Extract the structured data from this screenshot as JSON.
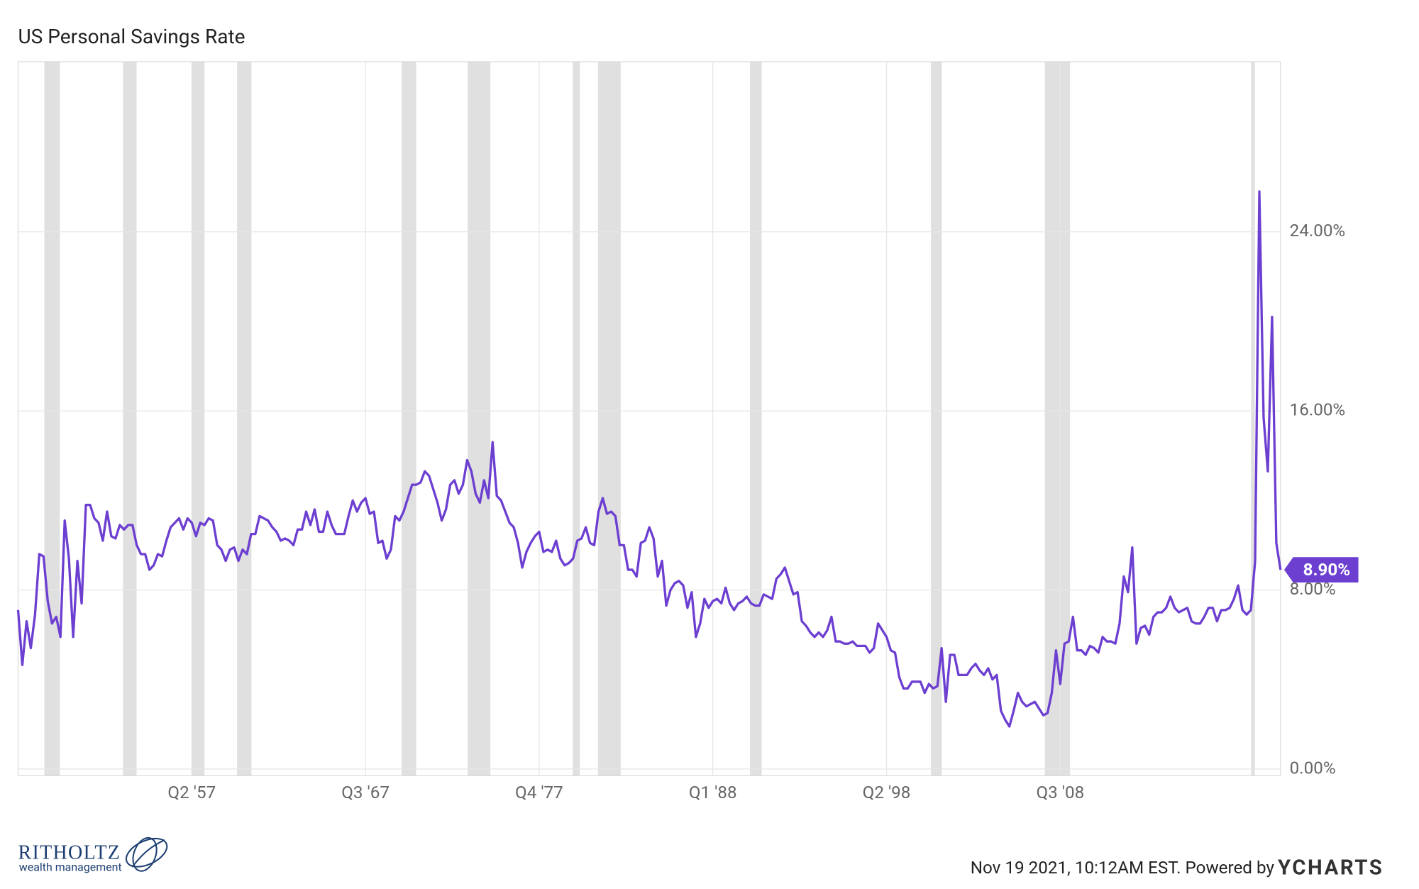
{
  "chart_data": {
    "type": "line",
    "title": "US Personal Savings Rate",
    "color": "#6c3fd1",
    "grid": true,
    "recession_color": "#e0e0e0",
    "end_label": "8.90%",
    "xlim": [
      1947,
      2021.5
    ],
    "ylim": [
      -0.3,
      31.6
    ],
    "xticks": [
      {
        "value": 1957.25,
        "label": "Q2 '57"
      },
      {
        "value": 1967.5,
        "label": "Q3 '67"
      },
      {
        "value": 1977.75,
        "label": "Q4 '77"
      },
      {
        "value": 1988,
        "label": "Q1 '88"
      },
      {
        "value": 1998.25,
        "label": "Q2 '98"
      },
      {
        "value": 2008.5,
        "label": "Q3 '08"
      }
    ],
    "yticks": [
      {
        "value": 0,
        "label": "0.00%"
      },
      {
        "value": 8,
        "label": "8.00%"
      },
      {
        "value": 16,
        "label": "16.00%"
      },
      {
        "value": 24,
        "label": "24.00%"
      }
    ],
    "recessions": [
      [
        1948.55,
        1949.46
      ],
      [
        1953.19,
        1953.99
      ],
      [
        1957.25,
        1958.0
      ],
      [
        1959.92,
        1960.77
      ],
      [
        1969.63,
        1970.49
      ],
      [
        1973.53,
        1974.87
      ],
      [
        1979.73,
        1980.15
      ],
      [
        1981.22,
        1982.56
      ],
      [
        1990.19,
        1990.88
      ],
      [
        2000.87,
        2001.51
      ],
      [
        2007.59,
        2009.08
      ],
      [
        2019.76,
        2019.98
      ]
    ],
    "x": [
      1947,
      1947.25,
      1947.5,
      1947.75,
      1948,
      1948.25,
      1948.5,
      1948.75,
      1949,
      1949.25,
      1949.5,
      1949.75,
      1950,
      1950.25,
      1950.5,
      1950.75,
      1951,
      1951.25,
      1951.5,
      1951.75,
      1952,
      1952.25,
      1952.5,
      1952.75,
      1953,
      1953.25,
      1953.5,
      1953.75,
      1954,
      1954.25,
      1954.5,
      1954.75,
      1955,
      1955.25,
      1955.5,
      1955.75,
      1956,
      1956.25,
      1956.5,
      1956.75,
      1957,
      1957.25,
      1957.5,
      1957.75,
      1958,
      1958.25,
      1958.5,
      1958.75,
      1959,
      1959.25,
      1959.5,
      1959.75,
      1960,
      1960.25,
      1960.5,
      1960.75,
      1961,
      1961.25,
      1961.5,
      1961.75,
      1962,
      1962.25,
      1962.5,
      1962.75,
      1963,
      1963.25,
      1963.5,
      1963.75,
      1964,
      1964.25,
      1964.5,
      1964.75,
      1965,
      1965.25,
      1965.5,
      1965.75,
      1966,
      1966.25,
      1966.5,
      1966.75,
      1967,
      1967.25,
      1967.5,
      1967.75,
      1968,
      1968.25,
      1968.5,
      1968.75,
      1969,
      1969.25,
      1969.5,
      1969.75,
      1970,
      1970.25,
      1970.5,
      1970.75,
      1971,
      1971.25,
      1971.5,
      1971.75,
      1972,
      1972.25,
      1972.5,
      1972.75,
      1973,
      1973.25,
      1973.5,
      1973.75,
      1974,
      1974.25,
      1974.5,
      1974.75,
      1975,
      1975.25,
      1975.5,
      1975.75,
      1976,
      1976.25,
      1976.5,
      1976.75,
      1977,
      1977.25,
      1977.5,
      1977.75,
      1978,
      1978.25,
      1978.5,
      1978.75,
      1979,
      1979.25,
      1979.5,
      1979.75,
      1980,
      1980.25,
      1980.5,
      1980.75,
      1981,
      1981.25,
      1981.5,
      1981.75,
      1982,
      1982.25,
      1982.5,
      1982.75,
      1983,
      1983.25,
      1983.5,
      1983.75,
      1984,
      1984.25,
      1984.5,
      1984.75,
      1985,
      1985.25,
      1985.5,
      1985.75,
      1986,
      1986.25,
      1986.5,
      1986.75,
      1987,
      1987.25,
      1987.5,
      1987.75,
      1988,
      1988.25,
      1988.5,
      1988.75,
      1989,
      1989.25,
      1989.5,
      1989.75,
      1990,
      1990.25,
      1990.5,
      1990.75,
      1991,
      1991.25,
      1991.5,
      1991.75,
      1992,
      1992.25,
      1992.5,
      1992.75,
      1993,
      1993.25,
      1993.5,
      1993.75,
      1994,
      1994.25,
      1994.5,
      1994.75,
      1995,
      1995.25,
      1995.5,
      1995.75,
      1996,
      1996.25,
      1996.5,
      1996.75,
      1997,
      1997.25,
      1997.5,
      1997.75,
      1998,
      1998.25,
      1998.5,
      1998.75,
      1999,
      1999.25,
      1999.5,
      1999.75,
      2000,
      2000.25,
      2000.5,
      2000.75,
      2001,
      2001.25,
      2001.5,
      2001.75,
      2002,
      2002.25,
      2002.5,
      2002.75,
      2003,
      2003.25,
      2003.5,
      2003.75,
      2004,
      2004.25,
      2004.5,
      2004.75,
      2005,
      2005.25,
      2005.5,
      2005.75,
      2006,
      2006.25,
      2006.5,
      2006.75,
      2007,
      2007.25,
      2007.5,
      2007.75,
      2008,
      2008.25,
      2008.5,
      2008.75,
      2009,
      2009.25,
      2009.5,
      2009.75,
      2010,
      2010.25,
      2010.5,
      2010.75,
      2011,
      2011.25,
      2011.5,
      2011.75,
      2012,
      2012.25,
      2012.5,
      2012.75,
      2013,
      2013.25,
      2013.5,
      2013.75,
      2014,
      2014.25,
      2014.5,
      2014.75,
      2015,
      2015.25,
      2015.5,
      2015.75,
      2016,
      2016.25,
      2016.5,
      2016.75,
      2017,
      2017.25,
      2017.5,
      2017.75,
      2018,
      2018.25,
      2018.5,
      2018.75,
      2019,
      2019.25,
      2019.5,
      2019.75,
      2020,
      2020.25,
      2020.5,
      2020.75,
      2021,
      2021.25,
      2021.5
    ],
    "values": [
      7.1,
      4.65,
      6.6,
      5.4,
      6.9,
      9.6,
      9.5,
      7.5,
      6.5,
      6.8,
      5.9,
      11.1,
      9.4,
      5.9,
      9.3,
      7.4,
      11.8,
      11.8,
      11.2,
      11.0,
      10.2,
      11.5,
      10.4,
      10.3,
      10.9,
      10.7,
      10.9,
      10.9,
      10.0,
      9.6,
      9.6,
      8.9,
      9.1,
      9.6,
      9.5,
      10.2,
      10.8,
      11.0,
      11.2,
      10.7,
      11.2,
      11.0,
      10.4,
      11.0,
      10.9,
      11.2,
      11.1,
      10.0,
      9.8,
      9.3,
      9.8,
      9.9,
      9.3,
      9.8,
      9.6,
      10.5,
      10.5,
      11.3,
      11.2,
      11.1,
      10.8,
      10.6,
      10.2,
      10.3,
      10.2,
      10.0,
      10.7,
      10.7,
      11.5,
      10.9,
      11.6,
      10.6,
      10.6,
      11.5,
      10.9,
      10.5,
      10.5,
      10.5,
      11.3,
      12.0,
      11.5,
      11.9,
      12.1,
      11.4,
      11.5,
      10.1,
      10.2,
      9.4,
      9.8,
      11.3,
      11.1,
      11.5,
      12.1,
      12.7,
      12.7,
      12.8,
      13.3,
      13.1,
      12.5,
      11.9,
      11.1,
      11.6,
      12.7,
      12.9,
      12.3,
      12.7,
      13.8,
      13.3,
      12.3,
      11.9,
      12.9,
      12.1,
      14.6,
      12.2,
      12.0,
      11.5,
      11.0,
      10.8,
      10.1,
      9.0,
      9.7,
      10.1,
      10.4,
      10.6,
      9.7,
      9.8,
      9.7,
      10.2,
      9.4,
      9.1,
      9.2,
      9.4,
      10.2,
      10.3,
      10.8,
      10.1,
      10.0,
      11.5,
      12.1,
      11.4,
      11.5,
      11.3,
      10.0,
      10.0,
      8.9,
      8.9,
      8.6,
      10.1,
      10.2,
      10.8,
      10.3,
      8.6,
      9.3,
      7.3,
      8.0,
      8.3,
      8.4,
      8.2,
      7.2,
      7.9,
      5.9,
      6.5,
      7.6,
      7.2,
      7.5,
      7.6,
      7.4,
      8.1,
      7.4,
      7.1,
      7.4,
      7.5,
      7.7,
      7.4,
      7.3,
      7.3,
      7.8,
      7.7,
      7.6,
      8.5,
      8.7,
      9.0,
      8.4,
      7.8,
      7.9,
      6.6,
      6.4,
      6.1,
      5.9,
      6.1,
      5.9,
      6.2,
      6.8,
      5.7,
      5.7,
      5.6,
      5.6,
      5.7,
      5.5,
      5.5,
      5.5,
      5.2,
      5.4,
      6.5,
      6.2,
      5.9,
      5.3,
      5.2,
      4.1,
      3.6,
      3.6,
      3.9,
      3.9,
      3.9,
      3.4,
      3.8,
      3.6,
      3.7,
      5.4,
      3.0,
      5.1,
      5.1,
      4.2,
      4.2,
      4.2,
      4.5,
      4.7,
      4.4,
      4.2,
      4.5,
      4.0,
      4.2,
      2.6,
      2.2,
      1.9,
      2.6,
      3.4,
      3.0,
      2.8,
      2.9,
      3.0,
      2.7,
      2.4,
      2.5,
      3.4,
      5.3,
      3.8,
      5.6,
      5.7,
      6.8,
      5.3,
      5.3,
      5.1,
      5.5,
      5.4,
      5.2,
      5.9,
      5.7,
      5.7,
      5.6,
      6.5,
      8.6,
      7.9,
      9.9,
      5.6,
      6.3,
      6.4,
      6.0,
      6.8,
      7.0,
      7.0,
      7.2,
      7.7,
      7.2,
      7.0,
      7.1,
      7.2,
      6.6,
      6.5,
      6.5,
      6.8,
      7.2,
      7.2,
      6.6,
      7.1,
      7.1,
      7.2,
      7.6,
      8.2,
      7.1,
      6.9,
      7.1,
      9.3,
      25.8,
      15.7,
      13.3,
      20.2,
      10.1,
      8.9
    ]
  },
  "footer": {
    "logo_name": "RITHOLTZ",
    "logo_tagline": "wealth management",
    "timestamp": "Nov 19 2021, 10:12AM EST. Powered by",
    "brand": "YCHARTS"
  }
}
